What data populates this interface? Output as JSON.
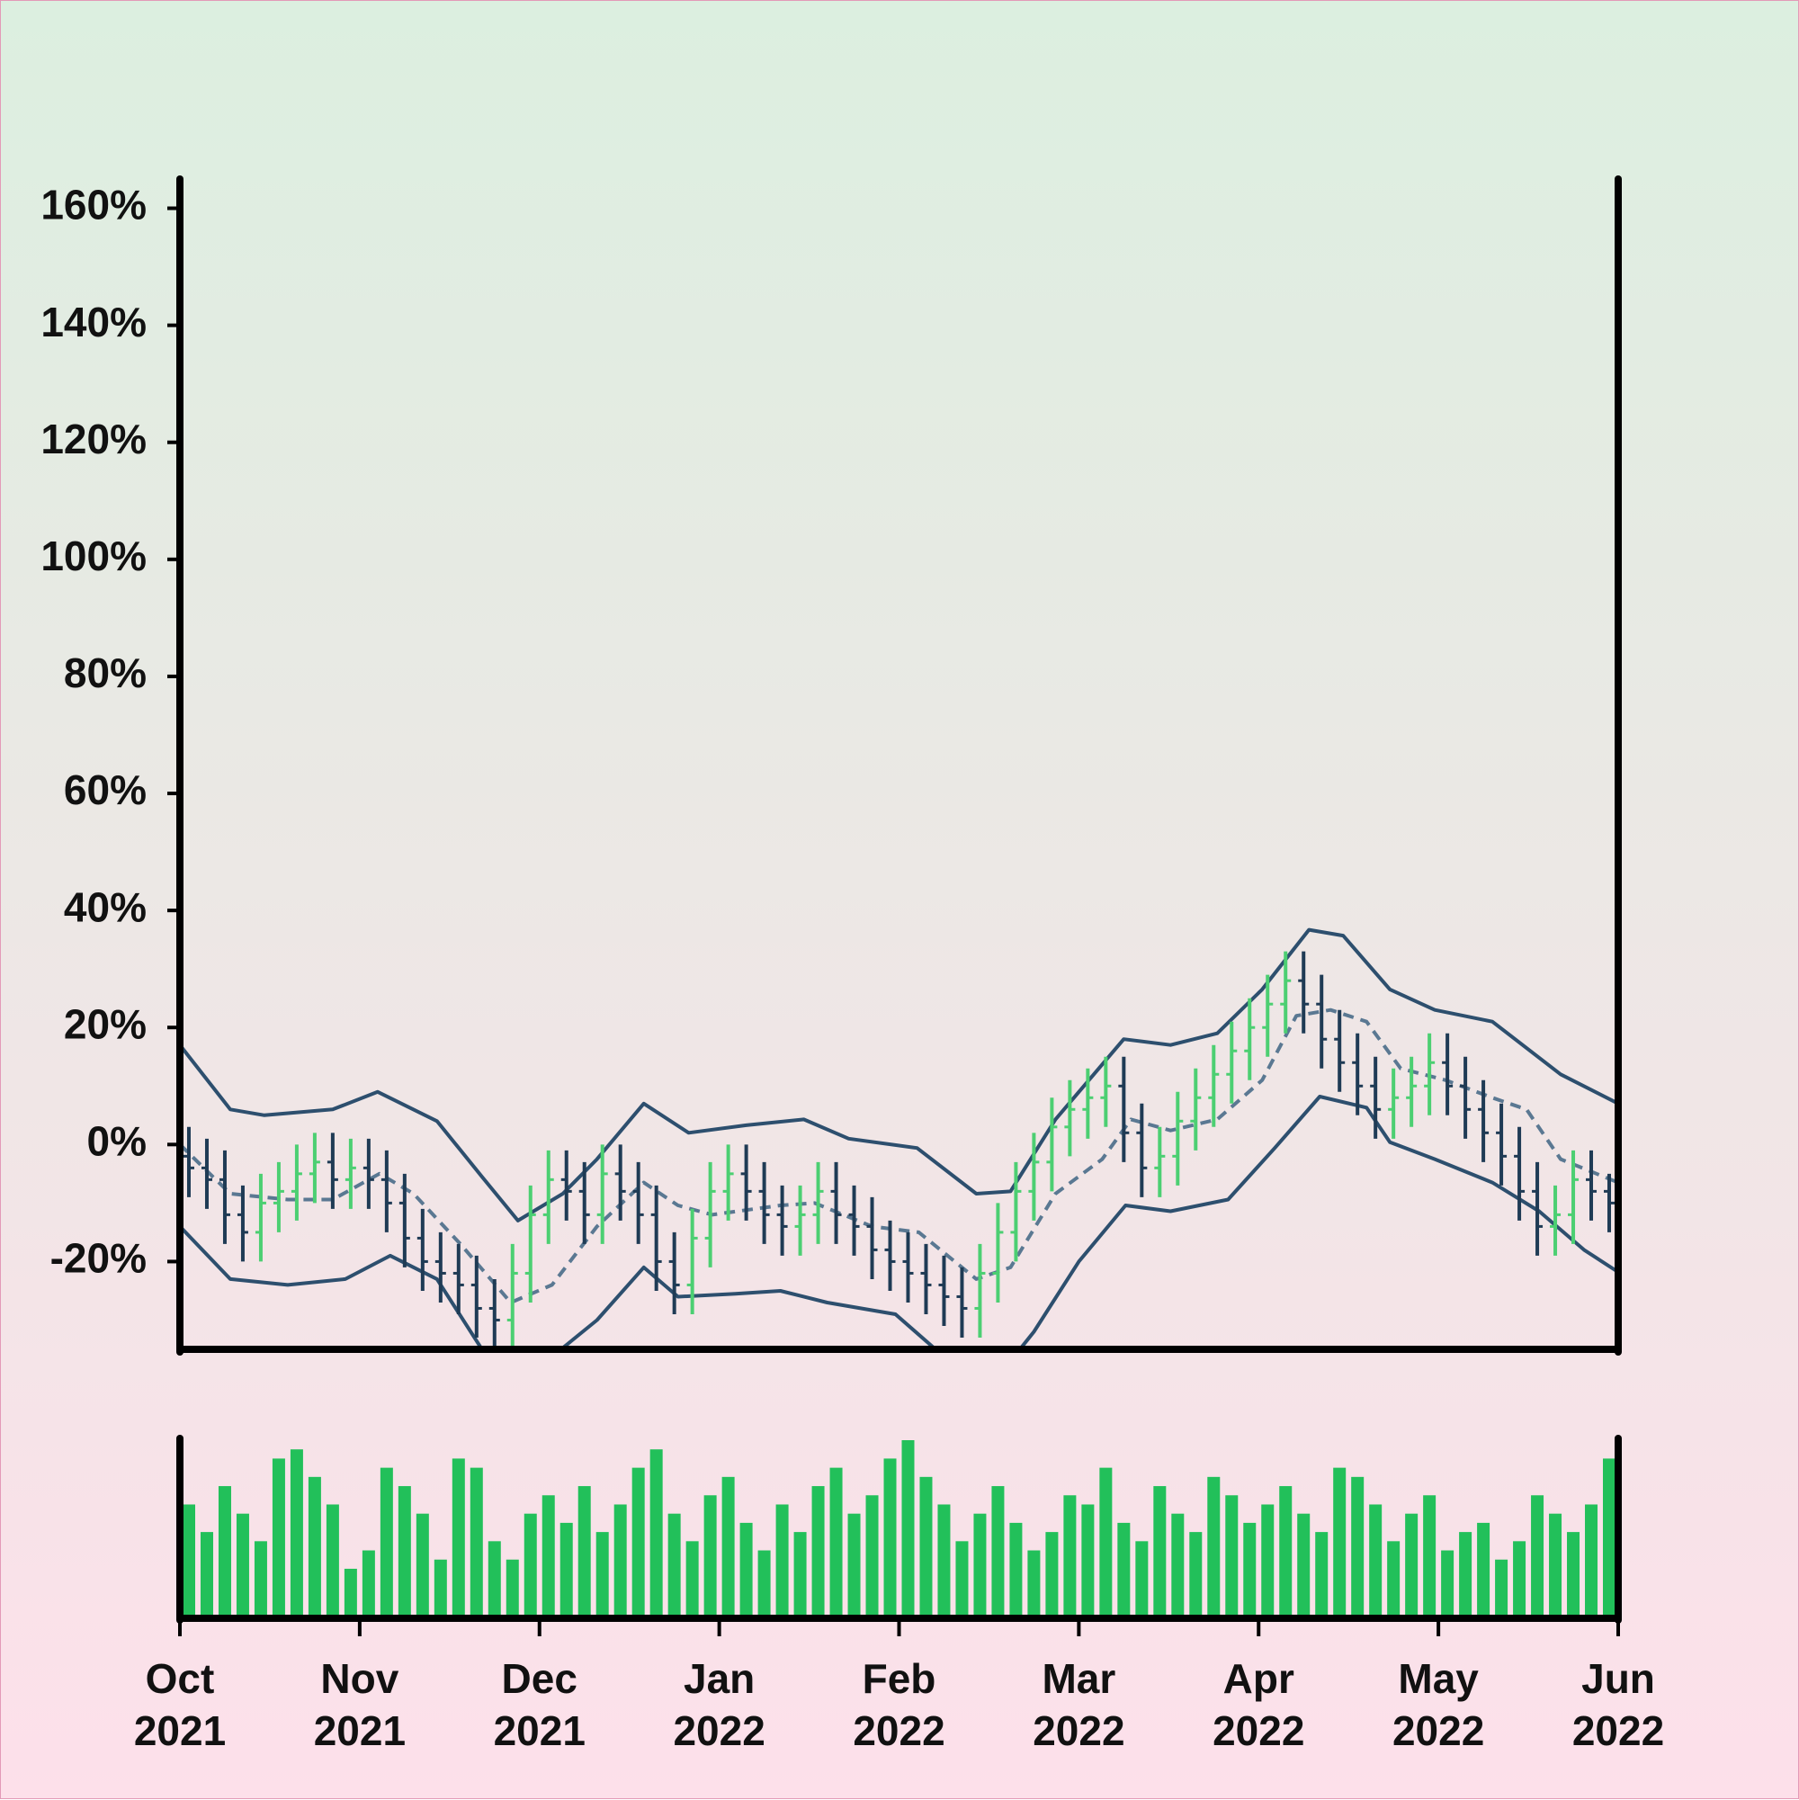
{
  "chart_data": {
    "type": "ohlc",
    "x": [
      0.05,
      0.15,
      0.25,
      0.35,
      0.45,
      0.55,
      0.65,
      0.75,
      0.85,
      0.95,
      1.05,
      1.15,
      1.25,
      1.35,
      1.45,
      1.55,
      1.65,
      1.75,
      1.85,
      1.95,
      2.05,
      2.15,
      2.25,
      2.35,
      2.45,
      2.55,
      2.65,
      2.75,
      2.85,
      2.95,
      3.05,
      3.15,
      3.25,
      3.35,
      3.45,
      3.55,
      3.65,
      3.75,
      3.85,
      3.95,
      4.05,
      4.15,
      4.25,
      4.35,
      4.45,
      4.55,
      4.65,
      4.75,
      4.85,
      4.95,
      5.05,
      5.15,
      5.25,
      5.35,
      5.45,
      5.55,
      5.65,
      5.75,
      5.85,
      5.95,
      6.05,
      6.15,
      6.25,
      6.35,
      6.45,
      6.55,
      6.65,
      6.75,
      6.85,
      6.95,
      7.05,
      7.15,
      7.25,
      7.35,
      7.45,
      7.55,
      7.65,
      7.75,
      7.85,
      7.95
    ],
    "open": [
      -2,
      -4,
      -6,
      -12,
      -15,
      -10,
      -8,
      -5,
      -3,
      -6,
      -4,
      -6,
      -10,
      -16,
      -20,
      -22,
      -24,
      -28,
      -30,
      -22,
      -12,
      -6,
      -8,
      -12,
      -5,
      -8,
      -12,
      -20,
      -24,
      -16,
      -8,
      -5,
      -8,
      -12,
      -14,
      -12,
      -8,
      -12,
      -14,
      -18,
      -20,
      -22,
      -24,
      -26,
      -28,
      -22,
      -15,
      -8,
      -3,
      3,
      6,
      8,
      10,
      2,
      -4,
      -2,
      4,
      8,
      12,
      16,
      20,
      24,
      28,
      24,
      18,
      14,
      10,
      6,
      8,
      10,
      14,
      10,
      6,
      2,
      -2,
      -8,
      -14,
      -12,
      -6,
      -8
    ],
    "high": [
      3,
      1,
      -1,
      -7,
      -5,
      -3,
      0,
      2,
      2,
      1,
      1,
      -1,
      -5,
      -11,
      -15,
      -17,
      -19,
      -23,
      -17,
      -7,
      -1,
      -1,
      -3,
      0,
      0,
      -3,
      -7,
      -15,
      -11,
      -3,
      0,
      0,
      -3,
      -7,
      -7,
      -3,
      -3,
      -7,
      -9,
      -13,
      -15,
      -17,
      -19,
      -21,
      -17,
      -10,
      -3,
      2,
      8,
      11,
      13,
      15,
      15,
      7,
      3,
      9,
      13,
      17,
      21,
      25,
      29,
      33,
      33,
      29,
      23,
      19,
      15,
      13,
      15,
      19,
      19,
      15,
      11,
      7,
      3,
      -3,
      -7,
      -1,
      -1,
      -5
    ],
    "low": [
      -9,
      -11,
      -17,
      -20,
      -20,
      -15,
      -13,
      -10,
      -11,
      -11,
      -11,
      -15,
      -21,
      -25,
      -27,
      -29,
      -33,
      -35,
      -35,
      -27,
      -17,
      -13,
      -17,
      -17,
      -13,
      -17,
      -25,
      -29,
      -29,
      -21,
      -13,
      -13,
      -17,
      -19,
      -19,
      -17,
      -17,
      -19,
      -23,
      -25,
      -27,
      -29,
      -31,
      -33,
      -33,
      -27,
      -20,
      -13,
      -8,
      -2,
      1,
      3,
      -3,
      -9,
      -9,
      -7,
      -1,
      3,
      7,
      11,
      15,
      19,
      19,
      13,
      9,
      5,
      1,
      1,
      3,
      5,
      5,
      1,
      -3,
      -7,
      -13,
      -19,
      -19,
      -17,
      -13,
      -15
    ],
    "close": [
      -4,
      -6,
      -12,
      -15,
      -10,
      -8,
      -5,
      -3,
      -6,
      -4,
      -6,
      -10,
      -16,
      -20,
      -22,
      -24,
      -28,
      -30,
      -22,
      -12,
      -6,
      -8,
      -12,
      -5,
      -8,
      -12,
      -20,
      -24,
      -16,
      -8,
      -5,
      -8,
      -12,
      -14,
      -12,
      -8,
      -12,
      -14,
      -18,
      -20,
      -22,
      -24,
      -26,
      -28,
      -22,
      -15,
      -8,
      -3,
      3,
      6,
      8,
      10,
      2,
      -4,
      -2,
      4,
      8,
      12,
      16,
      20,
      24,
      28,
      24,
      18,
      14,
      10,
      6,
      8,
      10,
      14,
      10,
      6,
      2,
      -2,
      -8,
      -14,
      -12,
      -6,
      -8,
      -10
    ],
    "volume": [
      60,
      45,
      70,
      55,
      40,
      85,
      90,
      75,
      60,
      25,
      35,
      80,
      70,
      55,
      30,
      85,
      80,
      40,
      30,
      55,
      65,
      50,
      70,
      45,
      60,
      80,
      90,
      55,
      40,
      65,
      75,
      50,
      35,
      60,
      45,
      70,
      80,
      55,
      65,
      85,
      95,
      75,
      60,
      40,
      55,
      70,
      50,
      35,
      45,
      65,
      60,
      80,
      50,
      40,
      70,
      55,
      45,
      75,
      65,
      50,
      60,
      70,
      55,
      45,
      80,
      75,
      60,
      40,
      55,
      65,
      35,
      45,
      50,
      30,
      40,
      65,
      55,
      45,
      60,
      85
    ],
    "up_color": "#4ccf72",
    "down_color": "#1f3b55",
    "volume_color": "#22c05a",
    "bands": [
      {
        "color": "#2d4f6e",
        "dashed": false,
        "x": [
          0,
          0.28,
          0.47,
          0.85,
          1.1,
          1.43,
          1.68,
          1.88,
          2.13,
          2.32,
          2.58,
          2.83,
          3.15,
          3.47,
          3.72,
          4.1,
          4.43,
          4.62,
          4.87,
          5.25,
          5.51,
          5.77,
          6.02,
          6.28,
          6.47,
          6.73,
          6.98,
          7.3,
          7.68,
          8
        ],
        "values": [
          17,
          6,
          5,
          6,
          9,
          4,
          -5.5,
          -13,
          -8.4,
          -2.5,
          7,
          2,
          3.3,
          4.3,
          1,
          -0.6,
          -8.4,
          -8,
          4.3,
          18,
          17,
          19,
          26.5,
          36.7,
          35.7,
          26.5,
          23,
          21,
          12,
          7
        ]
      },
      {
        "color": "#5a7892",
        "dashed": true,
        "x": [
          0,
          0.28,
          0.6,
          0.85,
          1.11,
          1.3,
          1.56,
          1.84,
          2.07,
          2.32,
          2.58,
          2.77,
          2.96,
          3.34,
          3.53,
          3.85,
          4.11,
          4.43,
          4.62,
          4.87,
          5.13,
          5.29,
          5.51,
          5.77,
          6.02,
          6.21,
          6.4,
          6.6,
          6.79,
          7.04,
          7.3,
          7.49,
          7.68,
          8
        ],
        "values": [
          0,
          -8.4,
          -9.4,
          -9.4,
          -5,
          -8.4,
          -17,
          -27,
          -24,
          -14,
          -6.5,
          -10.4,
          -12,
          -10.4,
          -10,
          -14,
          -15,
          -23,
          -21,
          -8.4,
          -2.5,
          4.3,
          2.4,
          4.3,
          11,
          22,
          23,
          21,
          13,
          11,
          8,
          6,
          -2.5,
          -6.5
        ]
      },
      {
        "color": "#2d4f6e",
        "dashed": false,
        "x": [
          0,
          0.28,
          0.6,
          0.92,
          1.17,
          1.43,
          1.68,
          2.0,
          2.32,
          2.58,
          2.77,
          3.09,
          3.34,
          3.6,
          3.98,
          4.24,
          4.49,
          4.75,
          5.0,
          5.26,
          5.51,
          5.83,
          6.09,
          6.34,
          6.6,
          6.73,
          6.98,
          7.3,
          7.56,
          7.81,
          8
        ],
        "values": [
          -14,
          -23,
          -24,
          -23,
          -19,
          -23,
          -35,
          -38,
          -30,
          -21,
          -26,
          -25.5,
          -25,
          -27,
          -29,
          -36,
          -42,
          -32,
          -20,
          -10.4,
          -11.4,
          -9.4,
          -0.6,
          8.2,
          6.3,
          0.4,
          -2.5,
          -6.5,
          -11.4,
          -18,
          -21.8
        ]
      }
    ],
    "xlim": [
      0,
      8
    ],
    "xticks": [
      {
        "value": 0,
        "label": "Oct\n2021"
      },
      {
        "value": 1,
        "label": "Nov\n2021"
      },
      {
        "value": 2,
        "label": "Dec\n2021"
      },
      {
        "value": 3,
        "label": "Jan\n2022"
      },
      {
        "value": 4,
        "label": "Feb\n2022"
      },
      {
        "value": 5,
        "label": "Mar\n2022"
      },
      {
        "value": 6,
        "label": "Apr\n2022"
      },
      {
        "value": 7,
        "label": "May\n2022"
      },
      {
        "value": 8,
        "label": "Jun\n2022"
      }
    ],
    "ylim": [
      -35,
      165
    ],
    "yticks": [
      {
        "value": -20,
        "label": "-20%"
      },
      {
        "value": 0,
        "label": "0%"
      },
      {
        "value": 20,
        "label": "20%"
      },
      {
        "value": 40,
        "label": "40%"
      },
      {
        "value": 60,
        "label": "60%"
      },
      {
        "value": 80,
        "label": "80%"
      },
      {
        "value": 100,
        "label": "100%"
      },
      {
        "value": 120,
        "label": "120%"
      },
      {
        "value": 140,
        "label": "140%"
      },
      {
        "value": 160,
        "label": "160%"
      }
    ]
  }
}
